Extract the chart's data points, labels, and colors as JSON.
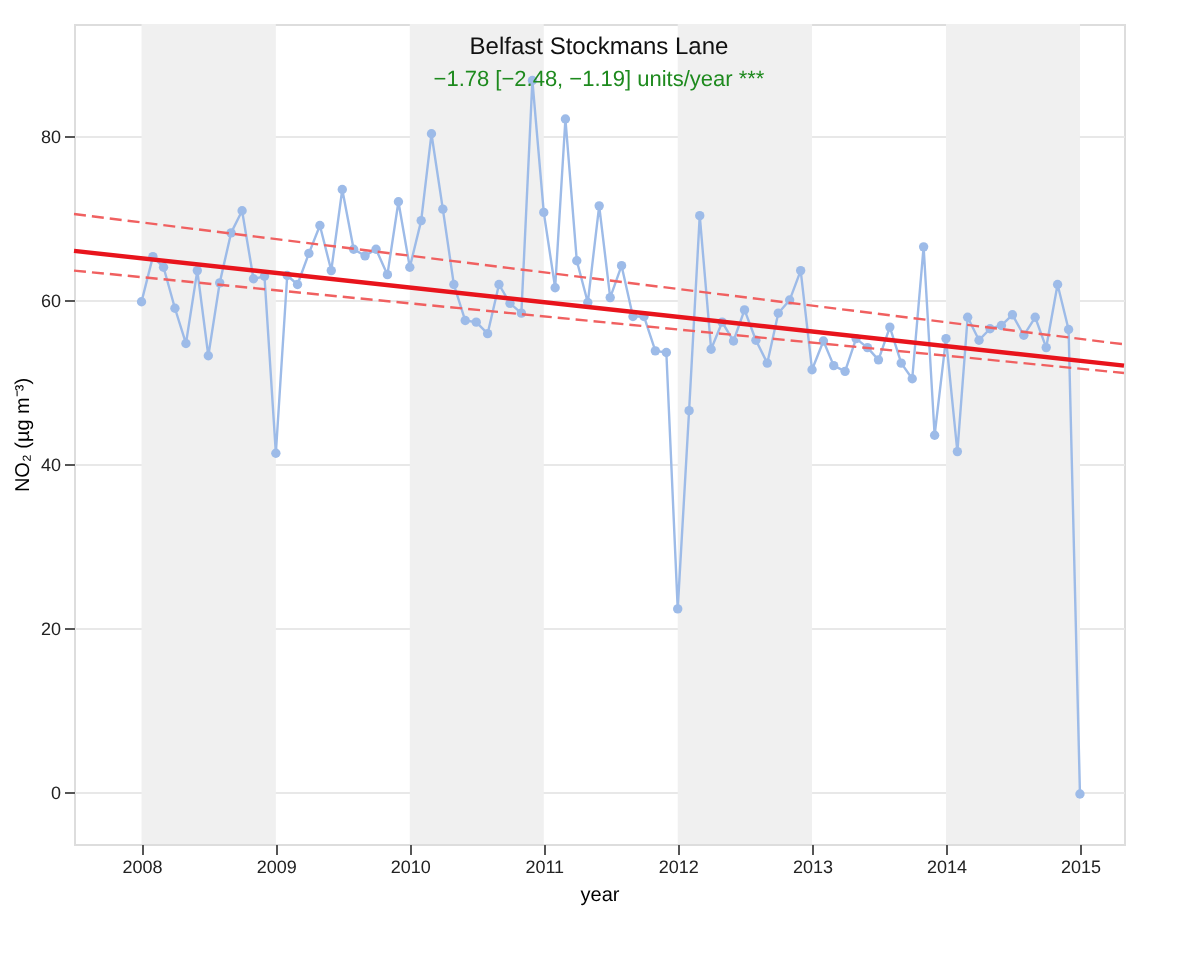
{
  "chart_data": {
    "type": "line",
    "title": "Belfast Stockmans Lane",
    "subtitle": "−1.78 [−2.48, −1.19] units/year ***",
    "xlabel": "year",
    "ylabel": "NO₂ (µg m⁻³)",
    "x": [
      "2008-01",
      "2008-02",
      "2008-03",
      "2008-04",
      "2008-05",
      "2008-06",
      "2008-07",
      "2008-08",
      "2008-09",
      "2008-10",
      "2008-11",
      "2008-12",
      "2009-01",
      "2009-02",
      "2009-03",
      "2009-04",
      "2009-05",
      "2009-06",
      "2009-07",
      "2009-08",
      "2009-09",
      "2009-10",
      "2009-11",
      "2009-12",
      "2010-01",
      "2010-02",
      "2010-03",
      "2010-04",
      "2010-05",
      "2010-06",
      "2010-07",
      "2010-08",
      "2010-09",
      "2010-10",
      "2010-11",
      "2010-12",
      "2011-01",
      "2011-02",
      "2011-03",
      "2011-04",
      "2011-05",
      "2011-06",
      "2011-07",
      "2011-08",
      "2011-09",
      "2011-10",
      "2011-11",
      "2011-12",
      "2012-01",
      "2012-02",
      "2012-03",
      "2012-04",
      "2012-05",
      "2012-06",
      "2012-07",
      "2012-08",
      "2012-09",
      "2012-10",
      "2012-11",
      "2012-12",
      "2013-01",
      "2013-02",
      "2013-03",
      "2013-04",
      "2013-05",
      "2013-06",
      "2013-07",
      "2013-08",
      "2013-09",
      "2013-10",
      "2013-11",
      "2013-12",
      "2014-01",
      "2014-02",
      "2014-03",
      "2014-04",
      "2014-05",
      "2014-06",
      "2014-07",
      "2014-08",
      "2014-09",
      "2014-10",
      "2014-11",
      "2014-12",
      "2015-01"
    ],
    "xlim": [
      "2007-07",
      "2015-05"
    ],
    "xticks": [
      "2008",
      "2009",
      "2010",
      "2011",
      "2012",
      "2013",
      "2014",
      "2015"
    ],
    "ylim": [
      -6.4,
      93.7
    ],
    "yticks": [
      0,
      20,
      40,
      60,
      80
    ],
    "grid": "y",
    "legend": false,
    "bands": [
      {
        "axis": "x",
        "from": "2008",
        "to": "2009",
        "color": "#f0f0f0"
      },
      {
        "axis": "x",
        "from": "2010",
        "to": "2011",
        "color": "#f0f0f0"
      },
      {
        "axis": "x",
        "from": "2012",
        "to": "2013",
        "color": "#f0f0f0"
      },
      {
        "axis": "x",
        "from": "2014",
        "to": "2015",
        "color": "#f0f0f0"
      }
    ],
    "series": [
      {
        "color": "#9dbbe8",
        "marker": "circle",
        "line_style": "solid",
        "values": [
          59.8,
          65.3,
          64.0,
          59.0,
          54.7,
          63.6,
          53.2,
          62.1,
          68.2,
          70.9,
          62.6,
          62.9,
          41.3,
          63.0,
          61.9,
          65.7,
          69.1,
          63.6,
          73.5,
          66.2,
          65.4,
          66.2,
          63.1,
          72.0,
          64.0,
          69.7,
          80.3,
          71.1,
          61.9,
          57.5,
          57.3,
          55.9,
          61.9,
          59.6,
          58.4,
          86.8,
          70.7,
          61.5,
          82.1,
          64.8,
          59.7,
          71.5,
          60.3,
          64.2,
          58.0,
          58.0,
          53.8,
          53.6,
          22.3,
          46.5,
          70.3,
          54.0,
          57.3,
          55.0,
          58.8,
          55.1,
          52.3,
          58.4,
          60.0,
          63.6,
          51.5,
          55.0,
          52.0,
          51.3,
          55.3,
          54.2,
          52.7,
          56.7,
          52.3,
          50.4,
          66.5,
          43.5,
          55.3,
          41.5,
          57.9,
          55.1,
          56.5,
          56.9,
          58.2,
          55.7,
          57.9,
          54.2,
          61.9,
          56.4,
          -0.3
        ]
      },
      {
        "type": "line",
        "x": [
          "2007-07",
          "2015-05"
        ],
        "values": [
          66.0,
          52.0
        ],
        "color": "#e8141c",
        "line_style": "solid",
        "marker": "none"
      },
      {
        "type": "line",
        "x": [
          "2007-07",
          "2015-05"
        ],
        "values": [
          70.5,
          54.6
        ],
        "color": "#f06060",
        "line_style": "dashed",
        "marker": "none"
      },
      {
        "type": "line",
        "x": [
          "2007-07",
          "2015-05"
        ],
        "values": [
          63.6,
          51.1
        ],
        "color": "#f06060",
        "line_style": "dashed",
        "marker": "none"
      }
    ]
  }
}
